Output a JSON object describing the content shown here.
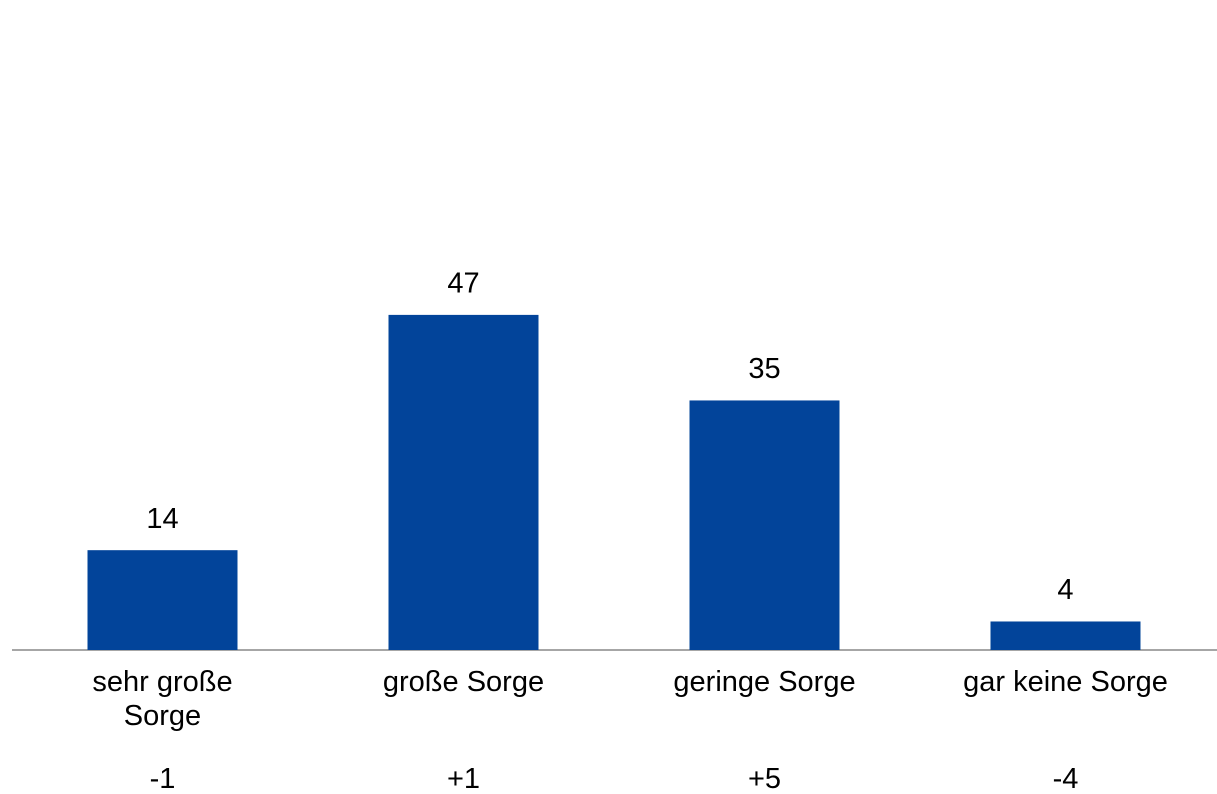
{
  "chart_data": {
    "type": "bar",
    "categories": [
      "sehr große Sorge",
      "große Sorge",
      "geringe Sorge",
      "gar keine Sorge"
    ],
    "values": [
      14,
      47,
      35,
      4
    ],
    "color": "#02449a",
    "changes": [
      -1,
      1,
      5,
      -4
    ],
    "change_labels": [
      "-1",
      "+1",
      "+5",
      "-4"
    ]
  }
}
